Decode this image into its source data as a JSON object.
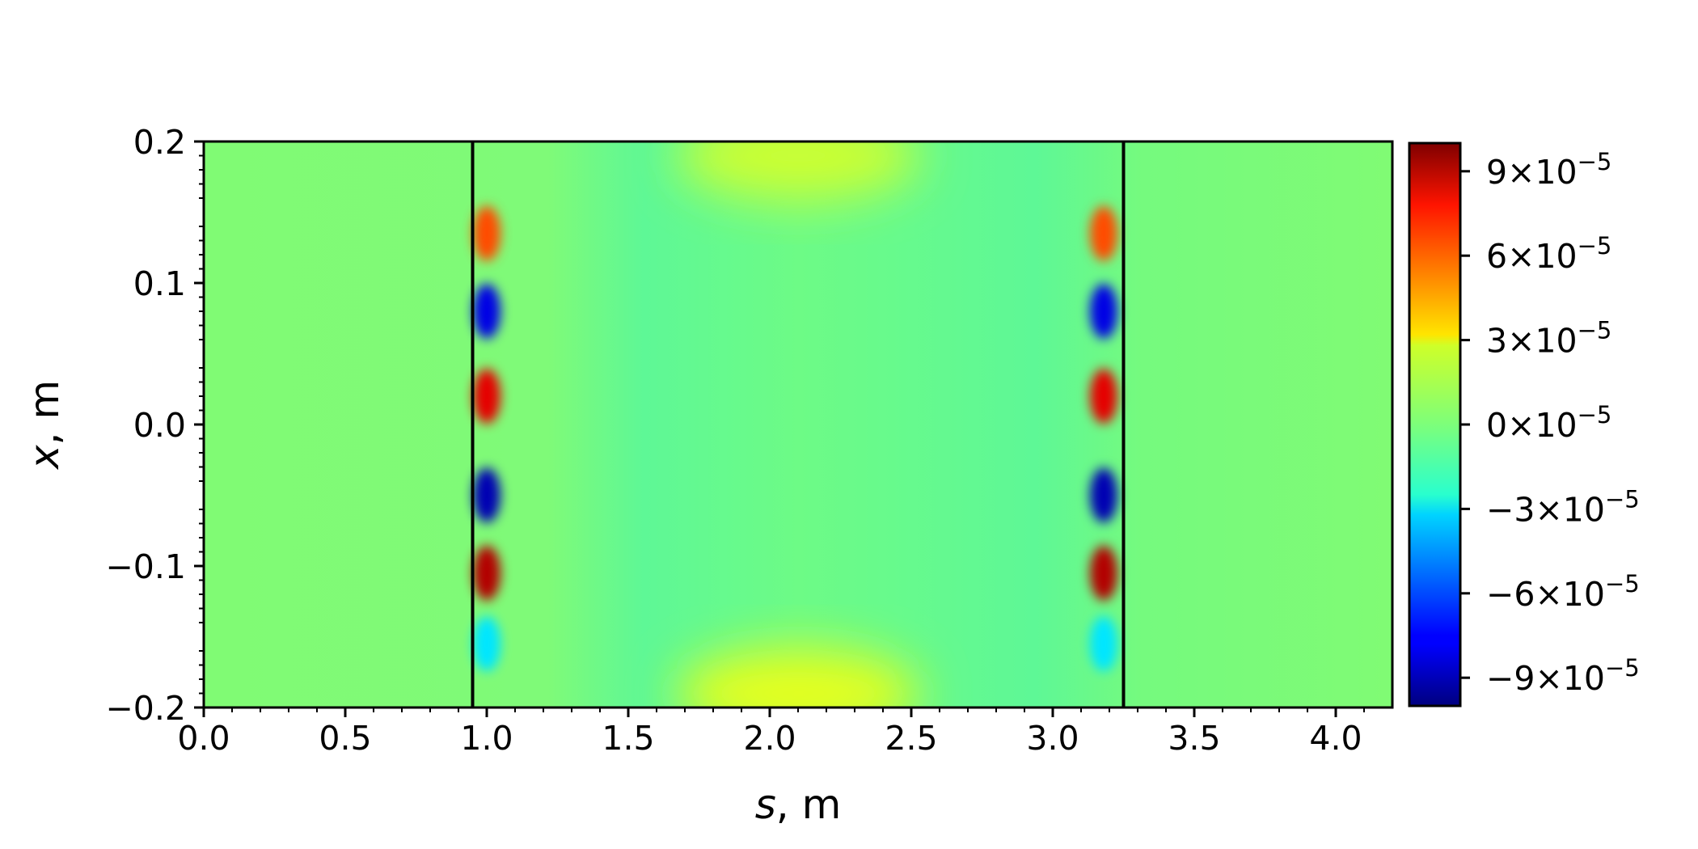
{
  "chart_data": {
    "type": "heatmap",
    "colormap": "jet",
    "xlabel": {
      "var": "s",
      "unit": ", m"
    },
    "ylabel": {
      "var": "x",
      "unit": ", m"
    },
    "xlim": [
      0.0,
      4.2
    ],
    "ylim": [
      -0.2,
      0.2
    ],
    "x_ticks": [
      0.0,
      0.5,
      1.0,
      1.5,
      2.0,
      2.5,
      3.0,
      3.5,
      4.0
    ],
    "x_tick_labels": [
      "0.0",
      "0.5",
      "1.0",
      "1.5",
      "2.0",
      "2.5",
      "3.0",
      "3.5",
      "4.0"
    ],
    "y_ticks": [
      0.2,
      0.1,
      0.0,
      -0.1,
      -0.2
    ],
    "y_tick_labels": [
      "0.2",
      "0.1",
      "0.0",
      "−0.1",
      "−0.2"
    ],
    "vertical_lines_s": [
      0.95,
      3.25
    ],
    "colorbar": {
      "range": [
        -0.0001,
        0.0001
      ],
      "ticks": [
        9,
        6,
        3,
        0,
        -3,
        -6,
        -9
      ],
      "tick_labels": [
        "9",
        "6",
        "3",
        "0",
        "−3",
        "−6",
        "−9"
      ],
      "mult": "×10",
      "exp": "−5"
    },
    "features": [
      {
        "s": 1.0,
        "x": 0.135,
        "value": 6e-05
      },
      {
        "s": 1.0,
        "x": 0.08,
        "value": -8e-05
      },
      {
        "s": 1.0,
        "x": 0.02,
        "value": 8e-05
      },
      {
        "s": 1.0,
        "x": -0.05,
        "value": -9e-05
      },
      {
        "s": 1.0,
        "x": -0.105,
        "value": 9e-05
      },
      {
        "s": 1.0,
        "x": -0.155,
        "value": -3e-05
      },
      {
        "s": 3.18,
        "x": 0.135,
        "value": 6e-05
      },
      {
        "s": 3.18,
        "x": 0.08,
        "value": -8e-05
      },
      {
        "s": 3.18,
        "x": 0.02,
        "value": 8e-05
      },
      {
        "s": 3.18,
        "x": -0.05,
        "value": -9e-05
      },
      {
        "s": 3.18,
        "x": -0.105,
        "value": 9e-05
      },
      {
        "s": 3.18,
        "x": -0.155,
        "value": -3e-05
      },
      {
        "s": 2.1,
        "x": 0.19,
        "value": 1.5e-05
      },
      {
        "s": 2.1,
        "x": -0.19,
        "value": 2e-05
      }
    ]
  }
}
